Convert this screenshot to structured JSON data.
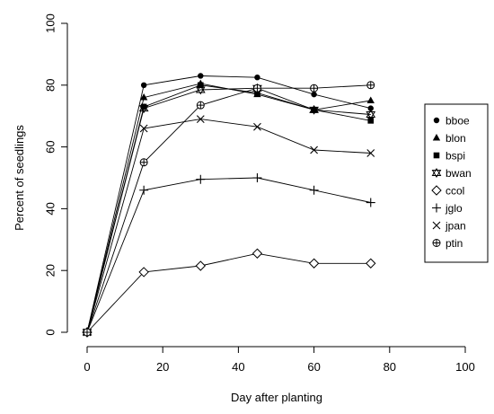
{
  "chart_data": {
    "type": "line",
    "title": "",
    "xlabel": "Day after planting",
    "ylabel": "Percent of seedlings",
    "xlim": [
      0,
      100
    ],
    "ylim": [
      0,
      100
    ],
    "xticks": [
      0,
      20,
      40,
      60,
      80,
      100
    ],
    "yticks": [
      0,
      20,
      40,
      60,
      80,
      100
    ],
    "x": [
      0,
      15,
      30,
      45,
      60,
      75
    ],
    "grid": false,
    "legend_position": "right",
    "series": [
      {
        "name": "bboe",
        "marker": "circle-filled",
        "values": [
          0,
          80,
          83,
          82.5,
          77,
          72.5
        ]
      },
      {
        "name": "blon",
        "marker": "triangle-filled",
        "values": [
          0,
          76,
          80.5,
          77,
          72,
          75
        ]
      },
      {
        "name": "bspi",
        "marker": "square-filled",
        "values": [
          0,
          73,
          80,
          77.5,
          72,
          68.5
        ]
      },
      {
        "name": "bwan",
        "marker": "triangle-down-star",
        "values": [
          0,
          72.5,
          78.5,
          79,
          72,
          70.5
        ]
      },
      {
        "name": "ccol",
        "marker": "diamond-open",
        "values": [
          0,
          19.5,
          21.5,
          25.5,
          22.3,
          22.3
        ]
      },
      {
        "name": "jglo",
        "marker": "plus",
        "values": [
          0,
          46,
          49.5,
          50,
          46,
          42
        ]
      },
      {
        "name": "jpan",
        "marker": "x",
        "values": [
          0,
          66,
          69,
          66.5,
          59,
          58
        ]
      },
      {
        "name": "ptin",
        "marker": "circle-plus",
        "values": [
          0,
          55,
          73.5,
          79,
          79,
          80
        ]
      }
    ]
  }
}
